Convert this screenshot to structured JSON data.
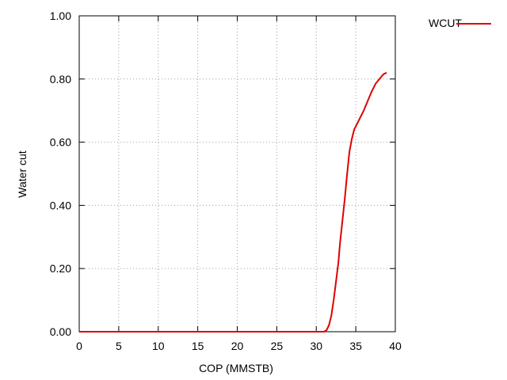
{
  "chart_data": {
    "type": "line",
    "xlabel": "COP (MMSTB)",
    "ylabel": "Water cut",
    "xlim": [
      0,
      40
    ],
    "ylim": [
      0,
      1.0
    ],
    "x_ticks": [
      "0",
      "5",
      "10",
      "15",
      "20",
      "25",
      "30",
      "35",
      "40"
    ],
    "x_tick_values": [
      0,
      5,
      10,
      15,
      20,
      25,
      30,
      35,
      40
    ],
    "y_ticks": [
      "0.00",
      "0.20",
      "0.40",
      "0.60",
      "0.80",
      "1.00"
    ],
    "y_tick_values": [
      0,
      0.2,
      0.4,
      0.6,
      0.8,
      1.0
    ],
    "grid": true,
    "legend_position": "outside-top-right",
    "series": [
      {
        "name": "WCUT",
        "color": "#e00000",
        "x": [
          0,
          10,
          20,
          30,
          31.0,
          31.3,
          31.6,
          31.9,
          32.2,
          32.5,
          32.8,
          33.0,
          33.3,
          33.6,
          33.9,
          34.2,
          34.5,
          34.8,
          35.2,
          35.6,
          36.0,
          36.5,
          37.0,
          37.5,
          38.0,
          38.5,
          38.9
        ],
        "y": [
          0,
          0,
          0,
          0,
          0.0,
          0.005,
          0.02,
          0.05,
          0.1,
          0.16,
          0.22,
          0.28,
          0.35,
          0.42,
          0.5,
          0.57,
          0.61,
          0.64,
          0.66,
          0.68,
          0.7,
          0.73,
          0.76,
          0.785,
          0.8,
          0.815,
          0.82
        ]
      }
    ]
  }
}
